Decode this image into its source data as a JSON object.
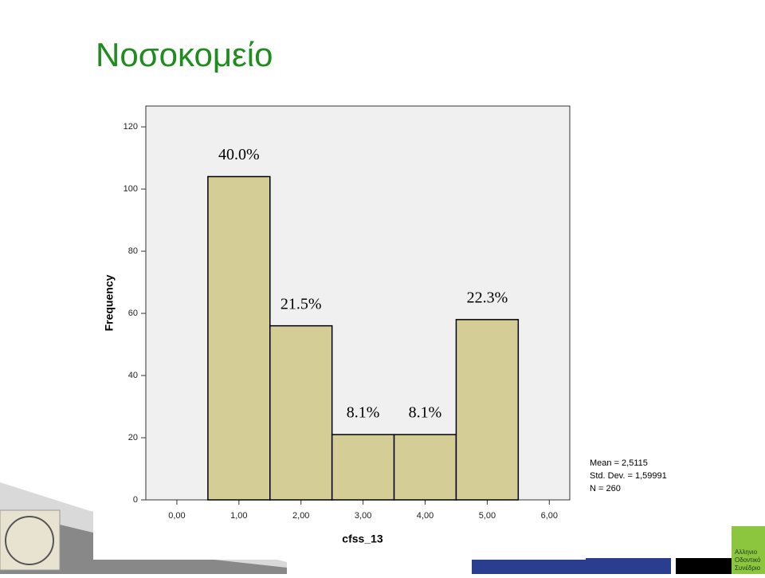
{
  "slide_title": "Νοσοκομείο",
  "chart_data": {
    "type": "histogram",
    "bins": [
      0.5,
      1.5,
      2.5,
      3.5,
      4.5,
      5.5
    ],
    "values": [
      104,
      56,
      21,
      21,
      58
    ],
    "annotations": [
      "40.0%",
      "21.5%",
      "8.1%",
      "8.1%",
      "22.3%"
    ],
    "color": "#d4cd95",
    "xlabel": "cfss_13",
    "ylabel": "Frequency",
    "xlim": [
      -0.5,
      6.33
    ],
    "ylim": [
      0,
      126.7
    ],
    "xticks": [
      {
        "value": 0,
        "label": "0,00"
      },
      {
        "value": 1,
        "label": "1,00"
      },
      {
        "value": 2,
        "label": "2,00"
      },
      {
        "value": 3,
        "label": "3,00"
      },
      {
        "value": 4,
        "label": "4,00"
      },
      {
        "value": 5,
        "label": "5,00"
      },
      {
        "value": 6,
        "label": "6,00"
      }
    ],
    "yticks": [
      0,
      20,
      40,
      60,
      80,
      100,
      120
    ],
    "stats": [
      "Mean = 2,5115",
      "Std. Dev. = 1,59991",
      "N = 260"
    ]
  },
  "footer": {
    "logo_text": [
      "Αλληνιο",
      "Οδοντικό",
      "Συνέδριο"
    ]
  }
}
